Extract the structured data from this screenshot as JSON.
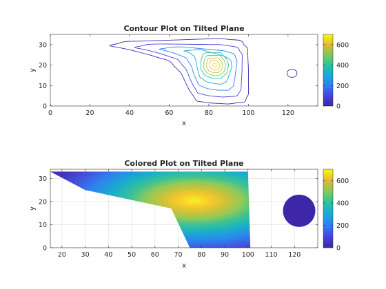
{
  "chart_data": [
    {
      "type": "contour",
      "title": "Contour Plot on Tilted Plane",
      "xlabel": "x",
      "ylabel": "y",
      "xlim": [
        0,
        135
      ],
      "ylim": [
        0,
        35
      ],
      "xticks": [
        0,
        20,
        40,
        60,
        80,
        100,
        120
      ],
      "yticks": [
        0,
        10,
        20,
        30
      ],
      "colorbar": {
        "ticks": [
          0,
          200,
          400,
          600
        ],
        "range": [
          0,
          700
        ],
        "colormap": "parula"
      },
      "peak": {
        "x": 83,
        "y": 20,
        "value": 700
      },
      "levels": [
        {
          "value": 50,
          "color": "#3e26a8"
        },
        {
          "value": 150,
          "color": "#4541e0"
        },
        {
          "value": 250,
          "color": "#2f7ef7"
        },
        {
          "value": 350,
          "color": "#16a9d9"
        },
        {
          "value": 430,
          "color": "#26c39c"
        },
        {
          "value": 500,
          "color": "#7cca5c"
        },
        {
          "value": 570,
          "color": "#c3c232"
        },
        {
          "value": 640,
          "color": "#f2c02f"
        },
        {
          "value": 690,
          "color": "#f5e022"
        }
      ],
      "circle": {
        "x": 122,
        "y": 16,
        "r": 2,
        "color": "#3e26a8"
      },
      "grid": false
    },
    {
      "type": "heatmap",
      "title": "Colored Plot on Tilted Plane",
      "xlabel": "x",
      "ylabel": "y",
      "xlim": [
        15,
        130
      ],
      "ylim": [
        0,
        34
      ],
      "xticks": [
        20,
        30,
        40,
        50,
        60,
        70,
        80,
        90,
        100,
        110,
        120
      ],
      "yticks": [
        0,
        10,
        20,
        30
      ],
      "colorbar": {
        "ticks": [
          0,
          200,
          400,
          600
        ],
        "range": [
          0,
          700
        ],
        "colormap": "parula"
      },
      "region_outline": [
        [
          15,
          33
        ],
        [
          100,
          33
        ],
        [
          101,
          0
        ],
        [
          75,
          0
        ],
        [
          67,
          17
        ],
        [
          30,
          25
        ],
        [
          15,
          33
        ]
      ],
      "peak": {
        "x": 83,
        "y": 20,
        "value": 700
      },
      "circle": {
        "x": 122,
        "y": 16,
        "r": 7,
        "color": "#3e26a8"
      },
      "grid": true
    }
  ]
}
